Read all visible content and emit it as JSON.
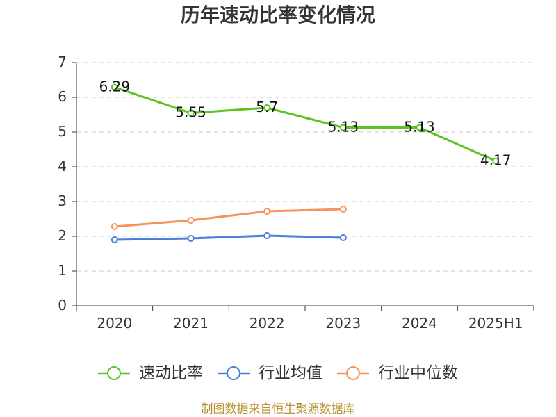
{
  "chart_data": {
    "type": "line",
    "title": "历年速动比率变化情况",
    "categories": [
      "2020",
      "2021",
      "2022",
      "2023",
      "2024",
      "2025H1"
    ],
    "series": [
      {
        "name": "速动比率",
        "values": [
          6.29,
          5.55,
          5.7,
          5.13,
          5.13,
          4.17
        ],
        "color": "#5cc322",
        "data_labels": true
      },
      {
        "name": "行业均值",
        "values": [
          1.9,
          1.94,
          2.02,
          1.96,
          null,
          null
        ],
        "color": "#4b7fd9",
        "data_labels": false
      },
      {
        "name": "行业中位数",
        "values": [
          2.28,
          2.46,
          2.72,
          2.78,
          null,
          null
        ],
        "color": "#f7925a",
        "data_labels": false
      }
    ],
    "ylim": [
      0,
      7
    ],
    "yticks": [
      0,
      1,
      2,
      3,
      4,
      5,
      6,
      7
    ],
    "grid": true,
    "legend": "bottom"
  },
  "footer": "制图数据来自恒生聚源数据库",
  "colors": {
    "text": "#333333",
    "grid": "#c8c8c8",
    "footer": "#b89230"
  }
}
